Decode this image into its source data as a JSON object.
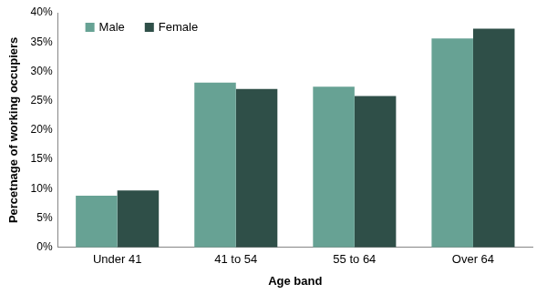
{
  "chart_data": {
    "type": "bar",
    "x_label": "Age band",
    "y_label": "Percetnage of working occupiers",
    "categories": [
      "Under 41",
      "41 to 54",
      "55 to 64",
      "Over 64"
    ],
    "series": [
      {
        "name": "Male",
        "color": "#67a294",
        "values": [
          8.8,
          28.1,
          27.4,
          35.6
        ]
      },
      {
        "name": "Female",
        "color": "#2f4f48",
        "values": [
          9.7,
          27.0,
          25.8,
          37.3
        ]
      }
    ],
    "ylim": [
      0,
      40
    ],
    "yticks": [
      {
        "value": 0,
        "label": "0%"
      },
      {
        "value": 5,
        "label": "5%"
      },
      {
        "value": 10,
        "label": "10%"
      },
      {
        "value": 15,
        "label": "15%"
      },
      {
        "value": 20,
        "label": "20%"
      },
      {
        "value": 25,
        "label": "25%"
      },
      {
        "value": 30,
        "label": "30%"
      },
      {
        "value": 35,
        "label": "35%"
      },
      {
        "value": 40,
        "label": "40%"
      }
    ],
    "grid": false,
    "legend": "upper left"
  }
}
